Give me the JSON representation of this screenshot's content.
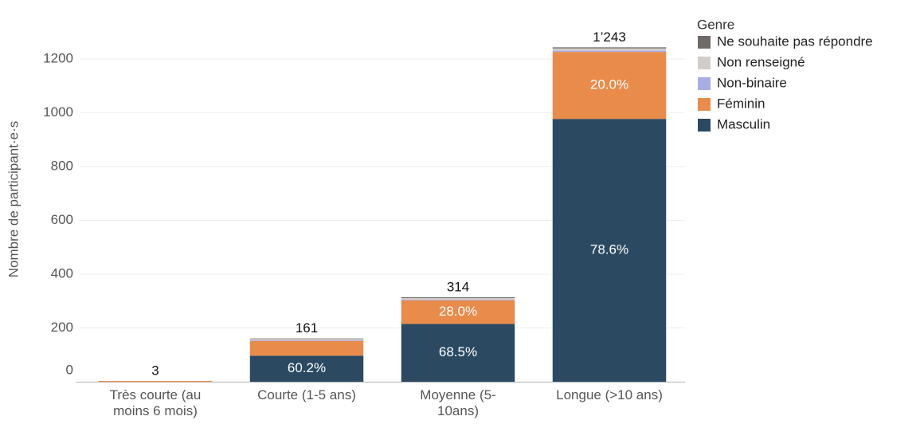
{
  "chart_data": {
    "type": "stacked_bar",
    "y_label": "Nombre de participant·e·s",
    "legend_title": "Genre",
    "legend_position": "right",
    "grid": true,
    "categories": [
      "Très courte (au moins 6 mois)",
      "Courte (1-5 ans)",
      "Moyenne (5-10ans)",
      "Longue (>10 ans)"
    ],
    "series": [
      {
        "name": "Masculin",
        "color": "#2b4a62",
        "values": [
          0,
          97,
          215,
          977
        ],
        "labels": [
          null,
          "60.2%",
          "68.5%",
          "78.6%"
        ]
      },
      {
        "name": "Féminin",
        "color": "#e98b4a",
        "values": [
          3,
          55,
          88,
          249
        ],
        "labels": [
          null,
          null,
          "28.0%",
          "20.0%"
        ]
      },
      {
        "name": "Non-binaire",
        "color": "#a8ade6",
        "values": [
          0,
          3,
          3,
          5
        ]
      },
      {
        "name": "Non renseigné",
        "color": "#d2cdc9",
        "values": [
          0,
          4,
          5,
          8
        ]
      },
      {
        "name": "Ne souhaite pas répondre",
        "color": "#6f6a67",
        "values": [
          0,
          2,
          3,
          4
        ]
      }
    ],
    "total_labels": [
      "3",
      "161",
      "314",
      "1’243"
    ],
    "ylim": [
      0,
      1330
    ],
    "yticks": [
      0,
      200,
      400,
      600,
      800,
      1000,
      1200
    ]
  }
}
